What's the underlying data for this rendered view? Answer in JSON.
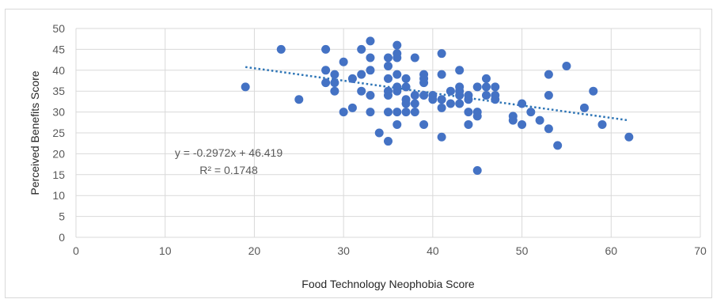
{
  "chart_data": {
    "type": "scatter",
    "title": "",
    "xlabel": "Food Technology Neophobia Score",
    "ylabel": "Perceived Benefits Score",
    "xlim": [
      0,
      70
    ],
    "ylim": [
      0,
      50
    ],
    "xticks": [
      0,
      10,
      20,
      30,
      40,
      50,
      60,
      70
    ],
    "yticks": [
      0,
      5,
      10,
      15,
      20,
      25,
      30,
      35,
      40,
      45,
      50
    ],
    "grid": "both",
    "legend": "none",
    "point_color": "#4472C4",
    "trendline": {
      "type": "linear",
      "slope": -0.2972,
      "intercept": 46.419,
      "x_range": [
        19,
        62
      ],
      "color": "#2E75B6",
      "style": "dotted"
    },
    "annotation": {
      "equation": "y = -0.2972x + 46.419",
      "r_squared": "R² = 0.1748"
    },
    "points": [
      [
        19,
        36
      ],
      [
        23,
        45
      ],
      [
        25,
        33
      ],
      [
        28,
        45
      ],
      [
        28,
        40
      ],
      [
        28,
        37
      ],
      [
        29,
        39
      ],
      [
        29,
        37
      ],
      [
        29,
        35
      ],
      [
        30,
        42
      ],
      [
        30,
        30
      ],
      [
        31,
        38
      ],
      [
        31,
        31
      ],
      [
        32,
        45
      ],
      [
        32,
        39
      ],
      [
        32,
        35
      ],
      [
        33,
        47
      ],
      [
        33,
        43
      ],
      [
        33,
        40
      ],
      [
        33,
        34
      ],
      [
        33,
        30
      ],
      [
        34,
        25
      ],
      [
        35,
        43
      ],
      [
        35,
        41
      ],
      [
        35,
        38
      ],
      [
        35,
        35
      ],
      [
        35,
        34
      ],
      [
        35,
        30
      ],
      [
        35,
        23
      ],
      [
        36,
        46
      ],
      [
        36,
        44
      ],
      [
        36,
        43
      ],
      [
        36,
        39
      ],
      [
        36,
        36
      ],
      [
        36,
        35
      ],
      [
        36,
        30
      ],
      [
        36,
        27
      ],
      [
        37,
        38
      ],
      [
        37,
        36
      ],
      [
        37,
        33
      ],
      [
        37,
        32
      ],
      [
        37,
        30
      ],
      [
        38,
        43
      ],
      [
        38,
        34
      ],
      [
        38,
        32
      ],
      [
        38,
        30
      ],
      [
        39,
        39
      ],
      [
        39,
        38
      ],
      [
        39,
        37
      ],
      [
        39,
        34
      ],
      [
        39,
        27
      ],
      [
        40,
        34
      ],
      [
        40,
        33
      ],
      [
        41,
        44
      ],
      [
        41,
        39
      ],
      [
        41,
        33
      ],
      [
        41,
        31
      ],
      [
        41,
        24
      ],
      [
        42,
        35
      ],
      [
        42,
        32
      ],
      [
        43,
        40
      ],
      [
        43,
        36
      ],
      [
        43,
        35
      ],
      [
        43,
        34
      ],
      [
        43,
        32
      ],
      [
        44,
        34
      ],
      [
        44,
        33
      ],
      [
        44,
        30
      ],
      [
        44,
        27
      ],
      [
        45,
        36
      ],
      [
        45,
        30
      ],
      [
        45,
        29
      ],
      [
        45,
        16
      ],
      [
        46,
        38
      ],
      [
        46,
        36
      ],
      [
        46,
        34
      ],
      [
        47,
        36
      ],
      [
        47,
        34
      ],
      [
        47,
        33
      ],
      [
        49,
        29
      ],
      [
        49,
        28
      ],
      [
        50,
        32
      ],
      [
        50,
        27
      ],
      [
        51,
        30
      ],
      [
        52,
        28
      ],
      [
        53,
        39
      ],
      [
        53,
        34
      ],
      [
        53,
        26
      ],
      [
        54,
        22
      ],
      [
        55,
        41
      ],
      [
        57,
        31
      ],
      [
        58,
        35
      ],
      [
        59,
        27
      ],
      [
        62,
        24
      ]
    ]
  }
}
